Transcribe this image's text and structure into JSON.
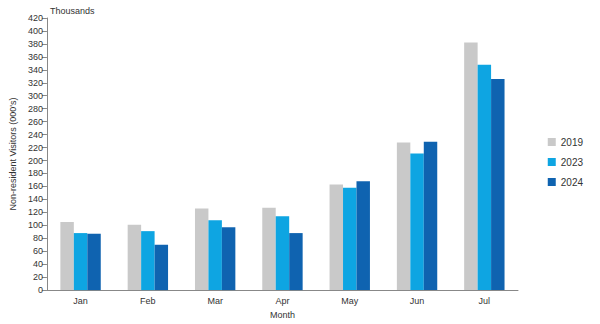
{
  "chart_data": {
    "type": "bar",
    "annotation": "Thousands",
    "x_label": "Month",
    "y_label": "Non-resident Visitors (000's)",
    "categories": [
      "Jan",
      "Feb",
      "Mar",
      "Apr",
      "May",
      "Jun",
      "Jul"
    ],
    "series": [
      {
        "name": "2019",
        "color": "#c9c9c9",
        "values": [
          105,
          101,
          126,
          127,
          163,
          228,
          382
        ]
      },
      {
        "name": "2023",
        "color": "#0ea5e2",
        "values": [
          88,
          91,
          108,
          114,
          158,
          211,
          348
        ]
      },
      {
        "name": "2024",
        "color": "#0f63b0",
        "values": [
          87,
          70,
          97,
          88,
          168,
          229,
          326
        ]
      }
    ],
    "ylim": [
      0,
      420
    ],
    "yticks": [
      0,
      20,
      40,
      60,
      80,
      100,
      120,
      140,
      160,
      180,
      200,
      220,
      240,
      260,
      280,
      300,
      320,
      340,
      360,
      380,
      400,
      420
    ],
    "grid": false,
    "legend": "right"
  }
}
